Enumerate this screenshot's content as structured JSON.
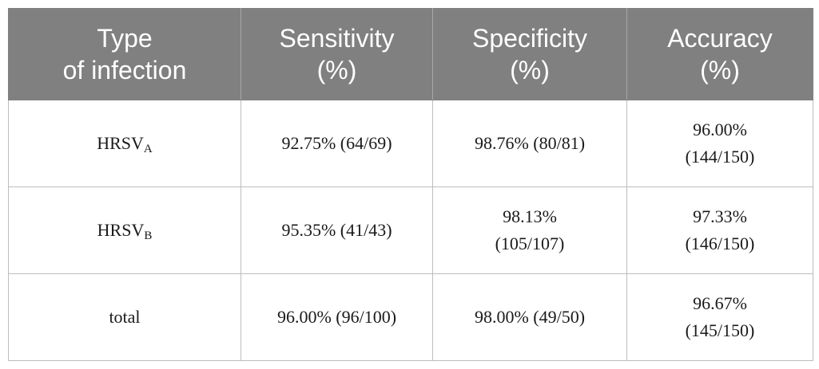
{
  "table": {
    "headers": [
      {
        "line1": "Type",
        "line2": "of infection"
      },
      {
        "line1": "Sensitivity",
        "line2": "(%)"
      },
      {
        "line1": "Specificity",
        "line2": "(%)"
      },
      {
        "line1": "Accuracy",
        "line2": "(%)"
      }
    ],
    "rows": [
      {
        "type": {
          "base": "HRSV",
          "sub": "A"
        },
        "sensitivity": {
          "line1": "92.75% (64/69)",
          "line2": ""
        },
        "specificity": {
          "line1": "98.76% (80/81)",
          "line2": ""
        },
        "accuracy": {
          "line1": "96.00%",
          "line2": "(144/150)"
        }
      },
      {
        "type": {
          "base": "HRSV",
          "sub": "B"
        },
        "sensitivity": {
          "line1": "95.35% (41/43)",
          "line2": ""
        },
        "specificity": {
          "line1": "98.13%",
          "line2": "(105/107)"
        },
        "accuracy": {
          "line1": "97.33%",
          "line2": "(146/150)"
        }
      },
      {
        "type": {
          "base": "total",
          "sub": ""
        },
        "sensitivity": {
          "line1": "96.00% (96/100)",
          "line2": ""
        },
        "specificity": {
          "line1": "98.00% (49/50)",
          "line2": ""
        },
        "accuracy": {
          "line1": "96.67%",
          "line2": "(145/150)"
        }
      }
    ]
  }
}
